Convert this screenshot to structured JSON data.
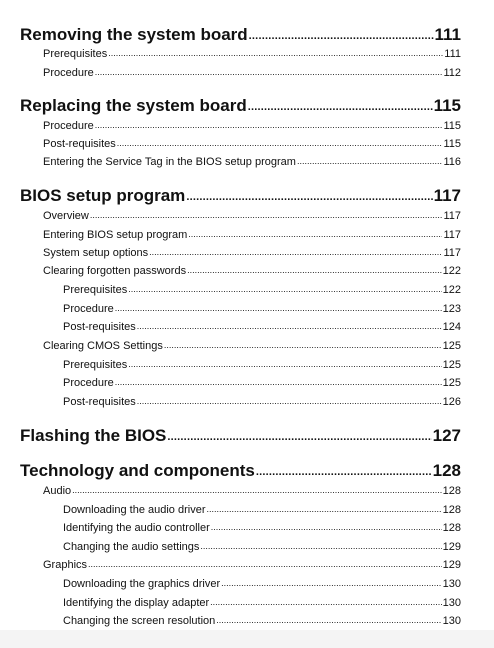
{
  "toc": [
    {
      "level": 1,
      "title": "Removing the system board",
      "page": "111"
    },
    {
      "level": 2,
      "title": "Prerequisites",
      "page": "111"
    },
    {
      "level": 2,
      "title": "Procedure",
      "page": "112"
    },
    {
      "level": 1,
      "title": "Replacing the system board",
      "page": "115"
    },
    {
      "level": 2,
      "title": "Procedure",
      "page": "115"
    },
    {
      "level": 2,
      "title": "Post-requisites",
      "page": "115"
    },
    {
      "level": 2,
      "title": "Entering the Service Tag in the BIOS setup program",
      "page": "116"
    },
    {
      "level": 1,
      "title": "BIOS setup program",
      "page": "117"
    },
    {
      "level": 2,
      "title": "Overview",
      "page": "117"
    },
    {
      "level": 2,
      "title": "Entering BIOS setup program",
      "page": "117"
    },
    {
      "level": 2,
      "title": "System setup options",
      "page": "117"
    },
    {
      "level": 2,
      "title": "Clearing forgotten passwords",
      "page": "122"
    },
    {
      "level": 3,
      "title": "Prerequisites",
      "page": "122"
    },
    {
      "level": 3,
      "title": "Procedure",
      "page": "123"
    },
    {
      "level": 3,
      "title": "Post-requisites",
      "page": "124"
    },
    {
      "level": 2,
      "title": "Clearing CMOS Settings",
      "page": "125"
    },
    {
      "level": 3,
      "title": "Prerequisites",
      "page": "125"
    },
    {
      "level": 3,
      "title": "Procedure",
      "page": "125"
    },
    {
      "level": 3,
      "title": "Post-requisites",
      "page": "126"
    },
    {
      "level": 1,
      "title": "Flashing the BIOS",
      "page": "127"
    },
    {
      "level": 1,
      "title": "Technology and components",
      "page": "128"
    },
    {
      "level": 2,
      "title": "Audio",
      "page": "128"
    },
    {
      "level": 3,
      "title": "Downloading the audio driver",
      "page": "128"
    },
    {
      "level": 3,
      "title": "Identifying the audio controller",
      "page": "128"
    },
    {
      "level": 3,
      "title": "Changing the audio settings",
      "page": "129"
    },
    {
      "level": 2,
      "title": "Graphics",
      "page": "129"
    },
    {
      "level": 3,
      "title": "Downloading the graphics driver",
      "page": "130"
    },
    {
      "level": 3,
      "title": "Identifying the display adapter",
      "page": "130"
    },
    {
      "level": 3,
      "title": "Changing the screen resolution",
      "page": "130"
    }
  ]
}
